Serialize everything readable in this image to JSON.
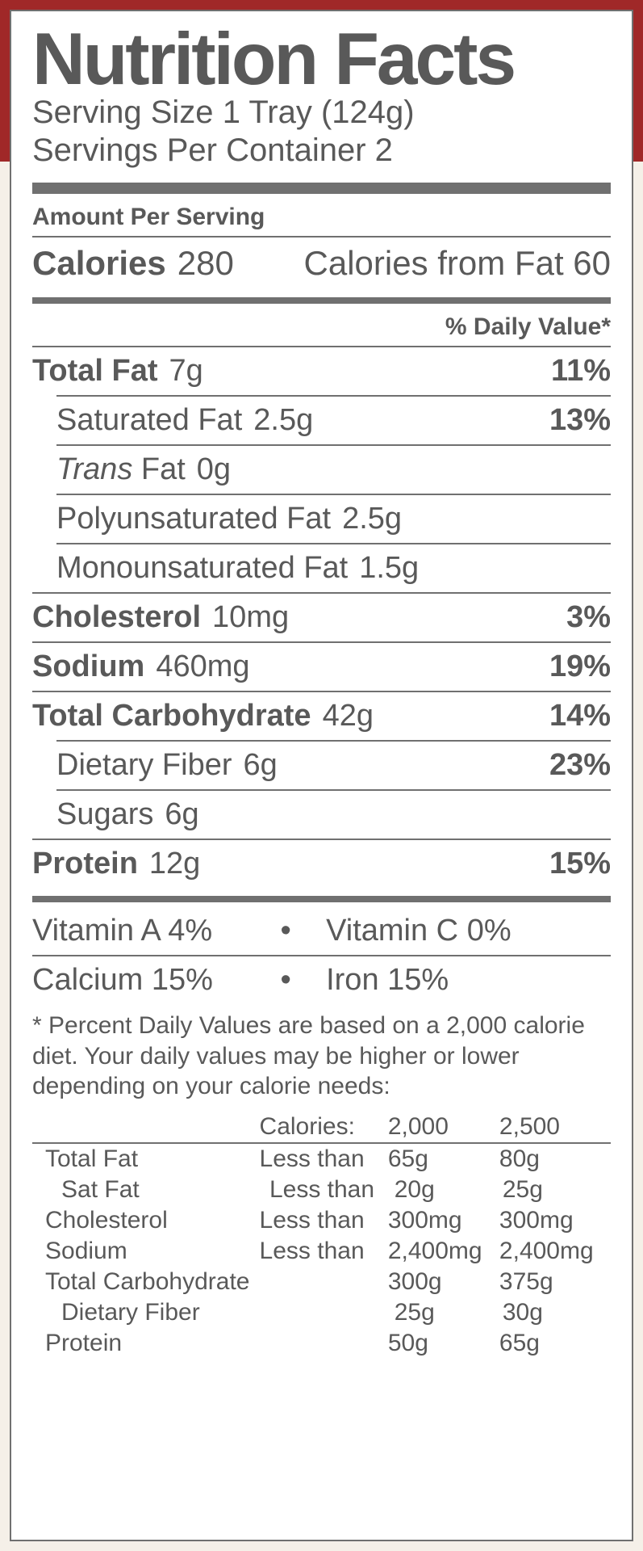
{
  "colors": {
    "background": "#f5f0e8",
    "red_header": "#a02828",
    "panel_bg": "#ffffff",
    "border": "#707070",
    "text": "#595959"
  },
  "title": "Nutrition Facts",
  "serving_size_label": "Serving Size",
  "serving_size_value": "1 Tray (124g)",
  "servings_per_container_label": "Servings Per Container",
  "servings_per_container_value": "2",
  "amount_per_serving": "Amount Per Serving",
  "calories_label": "Calories",
  "calories_value": "280",
  "calories_from_fat_label": "Calories from Fat",
  "calories_from_fat_value": "60",
  "daily_value_header": "% Daily Value*",
  "nutrients": [
    {
      "label": "Total Fat",
      "amount": "7g",
      "dv": "11%",
      "bold": true,
      "indent": false
    },
    {
      "label": "Saturated Fat",
      "amount": "2.5g",
      "dv": "13%",
      "bold": false,
      "indent": true
    },
    {
      "label_prefix_italic": "Trans",
      "label_rest": " Fat",
      "amount": "0g",
      "dv": "",
      "bold": false,
      "indent": true
    },
    {
      "label": "Polyunsaturated Fat",
      "amount": "2.5g",
      "dv": "",
      "bold": false,
      "indent": true
    },
    {
      "label": "Monounsaturated Fat",
      "amount": "1.5g",
      "dv": "",
      "bold": false,
      "indent": true
    },
    {
      "label": "Cholesterol",
      "amount": "10mg",
      "dv": "3%",
      "bold": true,
      "indent": false
    },
    {
      "label": "Sodium",
      "amount": "460mg",
      "dv": "19%",
      "bold": true,
      "indent": false
    },
    {
      "label": "Total Carbohydrate",
      "amount": "42g",
      "dv": "14%",
      "bold": true,
      "indent": false
    },
    {
      "label": "Dietary Fiber",
      "amount": "6g",
      "dv": "23%",
      "bold": false,
      "indent": true
    },
    {
      "label": "Sugars",
      "amount": "6g",
      "dv": "",
      "bold": false,
      "indent": true
    },
    {
      "label": "Protein",
      "amount": "12g",
      "dv": "15%",
      "bold": true,
      "indent": false
    }
  ],
  "vitamins": [
    {
      "left_label": "Vitamin A",
      "left_value": "4%",
      "right_label": "Vitamin C",
      "right_value": "0%"
    },
    {
      "left_label": "Calcium",
      "left_value": "15%",
      "right_label": "Iron",
      "right_value": "15%"
    }
  ],
  "footnote_star": "*",
  "footnote_text": "Percent Daily Values are based on a 2,000 calorie diet. Your daily values may be higher or lower depending on your calorie needs:",
  "ref_header": {
    "c2": "Calories:",
    "c3": "2,000",
    "c4": "2,500"
  },
  "ref_table": [
    {
      "name": "Total Fat",
      "qualifier": "Less than",
      "v2000": "65g",
      "v2500": "80g",
      "sub": false
    },
    {
      "name": "Sat Fat",
      "qualifier": "Less than",
      "v2000": "20g",
      "v2500": "25g",
      "sub": true
    },
    {
      "name": "Cholesterol",
      "qualifier": "Less than",
      "v2000": "300mg",
      "v2500": "300mg",
      "sub": false
    },
    {
      "name": "Sodium",
      "qualifier": "Less than",
      "v2000": "2,400mg",
      "v2500": "2,400mg",
      "sub": false
    },
    {
      "name": "Total Carbohydrate",
      "qualifier": "",
      "v2000": "300g",
      "v2500": "375g",
      "sub": false
    },
    {
      "name": "Dietary Fiber",
      "qualifier": "",
      "v2000": "25g",
      "v2500": "30g",
      "sub": true
    },
    {
      "name": "Protein",
      "qualifier": "",
      "v2000": "50g",
      "v2500": "65g",
      "sub": false
    }
  ]
}
